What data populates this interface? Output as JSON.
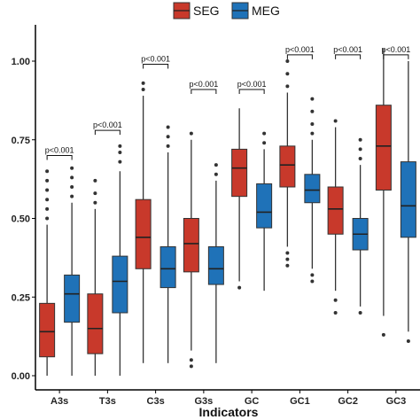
{
  "chart_data": {
    "type": "boxplot",
    "xlabel": "Indicators",
    "ylabel": "",
    "ylim": [
      0,
      1.05
    ],
    "yticks": [
      0.0,
      0.25,
      0.5,
      0.75,
      1.0
    ],
    "ytick_labels": [
      "0.00",
      "0.25",
      "0.50",
      "0.75",
      "1.00"
    ],
    "legend_position": "top",
    "categories": [
      "A3s",
      "T3s",
      "C3s",
      "G3s",
      "GC",
      "GC1",
      "GC2",
      "GC3"
    ],
    "series": [
      {
        "name": "SEG",
        "color": "#c8392b",
        "boxes": [
          {
            "min": 0.0,
            "q1": 0.06,
            "median": 0.14,
            "q3": 0.23,
            "max": 0.48
          },
          {
            "min": 0.0,
            "q1": 0.07,
            "median": 0.15,
            "q3": 0.26,
            "max": 0.53
          },
          {
            "min": 0.04,
            "q1": 0.34,
            "median": 0.44,
            "q3": 0.56,
            "max": 0.89
          },
          {
            "min": 0.08,
            "q1": 0.33,
            "median": 0.42,
            "q3": 0.5,
            "max": 0.75
          },
          {
            "min": 0.3,
            "q1": 0.57,
            "median": 0.66,
            "q3": 0.72,
            "max": 0.85
          },
          {
            "min": 0.41,
            "q1": 0.6,
            "median": 0.67,
            "q3": 0.73,
            "max": 0.9
          },
          {
            "min": 0.27,
            "q1": 0.45,
            "median": 0.53,
            "q3": 0.6,
            "max": 0.79
          },
          {
            "min": 0.19,
            "q1": 0.59,
            "median": 0.73,
            "q3": 0.86,
            "max": 1.04
          }
        ],
        "outliers": [
          {
            "category": "A3s",
            "values": [
              0.5,
              0.53,
              0.56,
              0.59,
              0.62,
              0.65
            ]
          },
          {
            "category": "T3s",
            "values": [
              0.55,
              0.58,
              0.62
            ]
          },
          {
            "category": "C3s",
            "values": [
              0.91,
              0.93
            ]
          },
          {
            "category": "G3s",
            "values": [
              0.03,
              0.05,
              0.77
            ]
          },
          {
            "category": "GC",
            "values": [
              0.28
            ]
          },
          {
            "category": "GC1",
            "values": [
              0.35,
              0.37,
              0.39,
              0.92,
              0.96,
              1.0
            ]
          },
          {
            "category": "GC2",
            "values": [
              0.2,
              0.24,
              0.81
            ]
          },
          {
            "category": "GC3",
            "values": [
              0.13
            ]
          }
        ]
      },
      {
        "name": "MEG",
        "color": "#1f72b8",
        "boxes": [
          {
            "min": 0.0,
            "q1": 0.17,
            "median": 0.26,
            "q3": 0.32,
            "max": 0.55
          },
          {
            "min": 0.0,
            "q1": 0.2,
            "median": 0.3,
            "q3": 0.38,
            "max": 0.65
          },
          {
            "min": 0.04,
            "q1": 0.28,
            "median": 0.34,
            "q3": 0.41,
            "max": 0.71
          },
          {
            "min": 0.04,
            "q1": 0.29,
            "median": 0.34,
            "q3": 0.41,
            "max": 0.62
          },
          {
            "min": 0.27,
            "q1": 0.47,
            "median": 0.52,
            "q3": 0.61,
            "max": 0.72
          },
          {
            "min": 0.34,
            "q1": 0.55,
            "median": 0.59,
            "q3": 0.64,
            "max": 0.75
          },
          {
            "min": 0.22,
            "q1": 0.4,
            "median": 0.45,
            "q3": 0.5,
            "max": 0.67
          },
          {
            "min": 0.14,
            "q1": 0.44,
            "median": 0.54,
            "q3": 0.68,
            "max": 1.0
          }
        ],
        "outliers": [
          {
            "category": "A3s",
            "values": [
              0.57,
              0.6,
              0.63,
              0.66
            ]
          },
          {
            "category": "T3s",
            "values": [
              0.68,
              0.71,
              0.73
            ]
          },
          {
            "category": "C3s",
            "values": [
              0.73,
              0.76,
              0.79
            ]
          },
          {
            "category": "G3s",
            "values": [
              0.64,
              0.67
            ]
          },
          {
            "category": "GC",
            "values": [
              0.74,
              0.77
            ]
          },
          {
            "category": "GC1",
            "values": [
              0.3,
              0.32,
              0.77,
              0.8,
              0.84,
              0.88
            ]
          },
          {
            "category": "GC2",
            "values": [
              0.2,
              0.69,
              0.72,
              0.75
            ]
          },
          {
            "category": "GC3",
            "values": [
              0.11
            ]
          }
        ]
      }
    ],
    "annotations": [
      {
        "category": "A3s",
        "text": "p<0.001",
        "y": 0.7
      },
      {
        "category": "T3s",
        "text": "p<0.001",
        "y": 0.78
      },
      {
        "category": "C3s",
        "text": "p<0.001",
        "y": 0.99
      },
      {
        "category": "G3s",
        "text": "p<0.001",
        "y": 0.91
      },
      {
        "category": "GC",
        "text": "p<0.001",
        "y": 0.91
      },
      {
        "category": "GC1",
        "text": "p<0.001",
        "y": 1.02
      },
      {
        "category": "GC2",
        "text": "p<0.001",
        "y": 1.02
      },
      {
        "category": "GC3",
        "text": "p<0.001",
        "y": 1.02
      }
    ]
  }
}
